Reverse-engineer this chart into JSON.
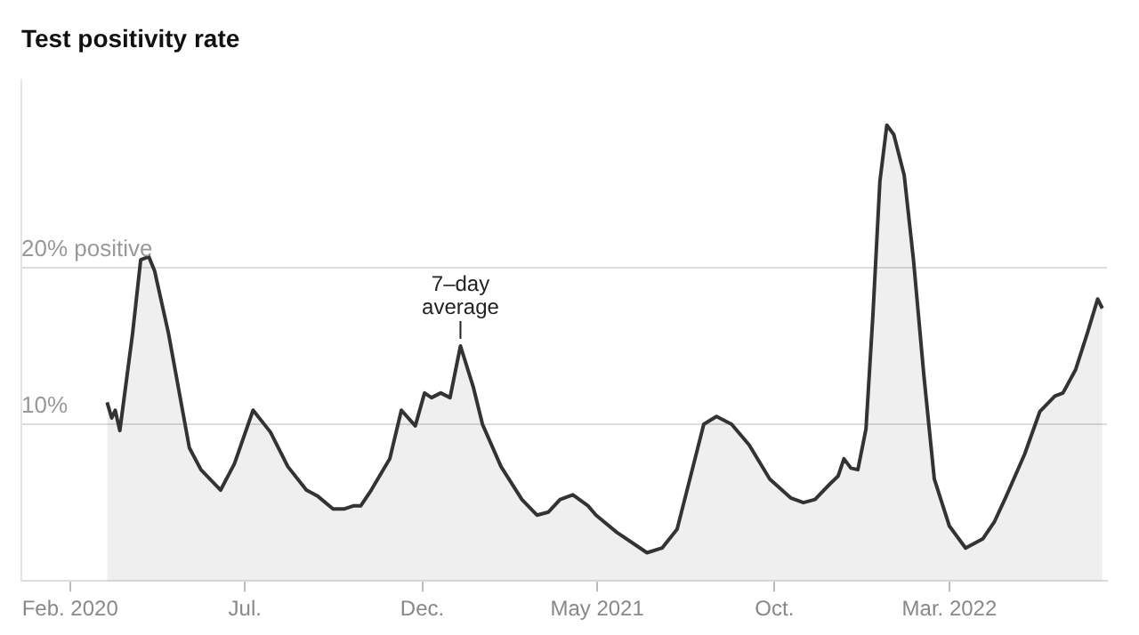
{
  "chart_data": {
    "type": "area",
    "title": "Test positivity rate",
    "x": [
      "2020-03-04",
      "2020-03-08",
      "2020-03-11",
      "2020-03-15",
      "2020-03-26",
      "2020-04-02",
      "2020-04-09",
      "2020-04-14",
      "2020-04-26",
      "2020-05-14",
      "2020-05-24",
      "2020-06-10",
      "2020-06-22",
      "2020-07-08",
      "2020-07-23",
      "2020-08-07",
      "2020-08-23",
      "2020-09-02",
      "2020-09-15",
      "2020-09-25",
      "2020-10-03",
      "2020-10-09",
      "2020-10-18",
      "2020-11-03",
      "2020-11-13",
      "2020-11-25",
      "2020-12-03",
      "2020-12-09",
      "2020-12-17",
      "2020-12-25",
      "2021-01-03",
      "2021-01-14",
      "2021-01-22",
      "2021-02-07",
      "2021-02-25",
      "2021-03-10",
      "2021-03-20",
      "2021-03-30",
      "2021-04-10",
      "2021-04-23",
      "2021-04-30",
      "2021-05-18",
      "2021-06-13",
      "2021-06-26",
      "2021-07-09",
      "2021-08-01",
      "2021-08-12",
      "2021-08-25",
      "2021-09-09",
      "2021-09-27",
      "2021-10-15",
      "2021-10-26",
      "2021-11-05",
      "2021-11-18",
      "2021-11-25",
      "2021-11-30",
      "2021-12-06",
      "2021-12-12",
      "2021-12-19",
      "2021-12-25",
      "2021-12-31",
      "2022-01-06",
      "2022-01-12",
      "2022-01-21",
      "2022-01-29",
      "2022-02-07",
      "2022-02-16",
      "2022-03-01",
      "2022-03-15",
      "2022-03-30",
      "2022-04-09",
      "2022-04-19",
      "2022-05-05",
      "2022-05-18",
      "2022-05-31",
      "2022-06-07",
      "2022-06-18",
      "2022-06-28",
      "2022-07-07",
      "2022-07-11"
    ],
    "series": [
      {
        "color": "#333333",
        "values": [
          11.4,
          10.4,
          10.9,
          9.6,
          15.8,
          20.5,
          20.7,
          19.8,
          15.8,
          8.5,
          7.1,
          5.8,
          7.5,
          10.9,
          9.5,
          7.3,
          5.8,
          5.4,
          4.6,
          4.6,
          4.8,
          4.8,
          5.8,
          7.8,
          10.9,
          9.9,
          12.0,
          11.7,
          12.0,
          11.7,
          15.0,
          12.4,
          10.0,
          7.3,
          5.2,
          4.2,
          4.4,
          5.2,
          5.5,
          4.8,
          4.2,
          3.1,
          1.8,
          2.1,
          3.3,
          10.0,
          10.5,
          10.0,
          8.7,
          6.5,
          5.3,
          5.0,
          5.2,
          6.2,
          6.7,
          7.8,
          7.2,
          7.1,
          9.7,
          17.0,
          25.5,
          29.1,
          28.5,
          25.9,
          20.5,
          13.1,
          6.5,
          3.5,
          2.1,
          2.7,
          3.8,
          5.4,
          8.1,
          10.8,
          11.8,
          12.0,
          13.5,
          15.8,
          18.0,
          17.4
        ]
      }
    ],
    "xlim": [
      "2019-12-21",
      "2022-07-15"
    ],
    "xticks": [
      {
        "value": "2020-02-01",
        "label": "Feb. 2020"
      },
      {
        "value": "2020-07-01",
        "label": "Jul."
      },
      {
        "value": "2020-12-01",
        "label": "Dec."
      },
      {
        "value": "2021-05-01",
        "label": "May 2021"
      },
      {
        "value": "2021-10-01",
        "label": "Oct."
      },
      {
        "value": "2022-03-01",
        "label": "Mar. 2022"
      }
    ],
    "ylim": [
      0,
      32
    ],
    "yticks": [
      {
        "value": 10,
        "label": "10%"
      },
      {
        "value": 20,
        "label": "20% positive"
      }
    ],
    "grid": "y",
    "legend": false,
    "annotations": [
      {
        "text": "7–day average",
        "x": "2021-01-03",
        "y": 15
      }
    ]
  }
}
